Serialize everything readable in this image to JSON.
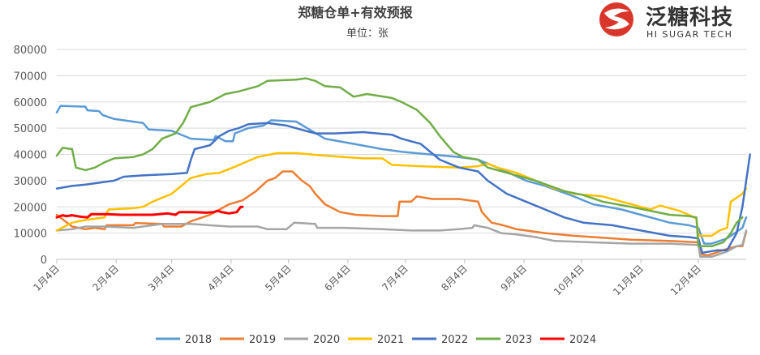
{
  "logo": {
    "name": "泛糖科技",
    "sub": "HI SUGAR TECH",
    "color": "#d9362b"
  },
  "chart_data": {
    "type": "line",
    "title": "郑糖仓单+有效预报",
    "subtitle": "单位：张",
    "xlabel": "",
    "ylabel": "",
    "ylim": [
      0,
      80000
    ],
    "yticks": [
      "0",
      "10000",
      "20000",
      "30000",
      "40000",
      "50000",
      "60000",
      "70000",
      "80000"
    ],
    "xlim": [
      0,
      360
    ],
    "xticks": [
      {
        "label": "1月4日",
        "day": 0
      },
      {
        "label": "2月4日",
        "day": 31
      },
      {
        "label": "3月4日",
        "day": 60
      },
      {
        "label": "4月4日",
        "day": 91
      },
      {
        "label": "5月4日",
        "day": 121
      },
      {
        "label": "6月4日",
        "day": 152
      },
      {
        "label": "7月4日",
        "day": 182
      },
      {
        "label": "8月4日",
        "day": 213
      },
      {
        "label": "9月4日",
        "day": 244
      },
      {
        "label": "10月4日",
        "day": 274
      },
      {
        "label": "11月4日",
        "day": 305
      },
      {
        "label": "12月4日",
        "day": 335
      }
    ],
    "grid": true,
    "legend_position": "bottom",
    "series": [
      {
        "name": "2018",
        "color": "#5b9bd5",
        "points": [
          [
            0,
            56000
          ],
          [
            2,
            58500
          ],
          [
            15,
            58200
          ],
          [
            16,
            56800
          ],
          [
            22,
            56500
          ],
          [
            24,
            55000
          ],
          [
            30,
            53500
          ],
          [
            45,
            52000
          ],
          [
            48,
            49500
          ],
          [
            60,
            49000
          ],
          [
            70,
            46000
          ],
          [
            82,
            45500
          ],
          [
            83,
            47000
          ],
          [
            88,
            45000
          ],
          [
            92,
            45000
          ],
          [
            93,
            48000
          ],
          [
            100,
            50000
          ],
          [
            108,
            51000
          ],
          [
            112,
            53000
          ],
          [
            125,
            52500
          ],
          [
            140,
            46000
          ],
          [
            155,
            44000
          ],
          [
            170,
            42000
          ],
          [
            180,
            41000
          ],
          [
            195,
            40000
          ],
          [
            210,
            39000
          ],
          [
            220,
            38000
          ],
          [
            230,
            35000
          ],
          [
            245,
            30000
          ],
          [
            255,
            28000
          ],
          [
            270,
            24000
          ],
          [
            280,
            21000
          ],
          [
            295,
            19000
          ],
          [
            305,
            17000
          ],
          [
            320,
            14000
          ],
          [
            330,
            13000
          ],
          [
            335,
            12000
          ],
          [
            338,
            6000
          ],
          [
            342,
            6000
          ],
          [
            350,
            8000
          ],
          [
            358,
            12000
          ],
          [
            360,
            16000
          ]
        ]
      },
      {
        "name": "2019",
        "color": "#ed7d31",
        "points": [
          [
            0,
            17000
          ],
          [
            8,
            12500
          ],
          [
            15,
            11500
          ],
          [
            20,
            12000
          ],
          [
            25,
            11500
          ],
          [
            26,
            13000
          ],
          [
            40,
            13000
          ],
          [
            41,
            13800
          ],
          [
            55,
            13500
          ],
          [
            56,
            12500
          ],
          [
            65,
            12500
          ],
          [
            70,
            14500
          ],
          [
            80,
            17000
          ],
          [
            85,
            19000
          ],
          [
            90,
            21000
          ],
          [
            97,
            22500
          ],
          [
            104,
            26000
          ],
          [
            110,
            30000
          ],
          [
            114,
            31000
          ],
          [
            118,
            33500
          ],
          [
            123,
            33500
          ],
          [
            128,
            30000
          ],
          [
            132,
            28000
          ],
          [
            135,
            25000
          ],
          [
            140,
            21000
          ],
          [
            148,
            18000
          ],
          [
            156,
            17000
          ],
          [
            170,
            16500
          ],
          [
            178,
            16500
          ],
          [
            179,
            22000
          ],
          [
            185,
            22000
          ],
          [
            188,
            24000
          ],
          [
            196,
            23000
          ],
          [
            210,
            23000
          ],
          [
            220,
            22000
          ],
          [
            222,
            18000
          ],
          [
            227,
            14000
          ],
          [
            233,
            13000
          ],
          [
            240,
            11500
          ],
          [
            255,
            10000
          ],
          [
            270,
            9000
          ],
          [
            290,
            8000
          ],
          [
            300,
            7500
          ],
          [
            320,
            7000
          ],
          [
            335,
            6500
          ],
          [
            336,
            2000
          ],
          [
            340,
            1500
          ],
          [
            350,
            4000
          ],
          [
            355,
            5000
          ],
          [
            358,
            5000
          ],
          [
            360,
            10500
          ]
        ]
      },
      {
        "name": "2020",
        "color": "#a5a5a5",
        "points": [
          [
            0,
            11000
          ],
          [
            8,
            11500
          ],
          [
            15,
            12500
          ],
          [
            25,
            12500
          ],
          [
            40,
            12000
          ],
          [
            55,
            13500
          ],
          [
            70,
            13500
          ],
          [
            90,
            12500
          ],
          [
            105,
            12500
          ],
          [
            110,
            11500
          ],
          [
            120,
            11500
          ],
          [
            124,
            14000
          ],
          [
            135,
            13500
          ],
          [
            136,
            12000
          ],
          [
            150,
            12000
          ],
          [
            170,
            11500
          ],
          [
            185,
            11000
          ],
          [
            200,
            11000
          ],
          [
            210,
            11500
          ],
          [
            217,
            12000
          ],
          [
            218,
            13000
          ],
          [
            225,
            12000
          ],
          [
            232,
            10000
          ],
          [
            240,
            9500
          ],
          [
            250,
            8500
          ],
          [
            260,
            7000
          ],
          [
            280,
            6500
          ],
          [
            300,
            6000
          ],
          [
            320,
            6000
          ],
          [
            335,
            5500
          ],
          [
            336,
            1000
          ],
          [
            342,
            1000
          ],
          [
            350,
            3000
          ],
          [
            355,
            5000
          ],
          [
            358,
            5500
          ],
          [
            360,
            11000
          ]
        ]
      },
      {
        "name": "2021",
        "color": "#ffc000",
        "points": [
          [
            0,
            11000
          ],
          [
            8,
            14000
          ],
          [
            15,
            15000
          ],
          [
            25,
            16000
          ],
          [
            27,
            19000
          ],
          [
            40,
            19500
          ],
          [
            45,
            20000
          ],
          [
            50,
            22000
          ],
          [
            60,
            25000
          ],
          [
            65,
            28000
          ],
          [
            70,
            31000
          ],
          [
            78,
            32500
          ],
          [
            85,
            33000
          ],
          [
            92,
            35000
          ],
          [
            100,
            37500
          ],
          [
            105,
            39000
          ],
          [
            115,
            40500
          ],
          [
            125,
            40500
          ],
          [
            140,
            39500
          ],
          [
            160,
            38500
          ],
          [
            170,
            38500
          ],
          [
            175,
            36000
          ],
          [
            190,
            35500
          ],
          [
            210,
            35000
          ],
          [
            220,
            35500
          ],
          [
            225,
            36500
          ],
          [
            230,
            35000
          ],
          [
            240,
            33000
          ],
          [
            250,
            30000
          ],
          [
            260,
            27000
          ],
          [
            270,
            25000
          ],
          [
            285,
            24000
          ],
          [
            295,
            22000
          ],
          [
            300,
            21000
          ],
          [
            310,
            19000
          ],
          [
            315,
            20500
          ],
          [
            325,
            18500
          ],
          [
            330,
            17000
          ],
          [
            334,
            15500
          ],
          [
            335,
            9000
          ],
          [
            342,
            9000
          ],
          [
            346,
            11000
          ],
          [
            350,
            12000
          ],
          [
            352,
            22000
          ],
          [
            358,
            25000
          ],
          [
            360,
            27000
          ]
        ]
      },
      {
        "name": "2022",
        "color": "#4472c4",
        "points": [
          [
            0,
            27000
          ],
          [
            8,
            28000
          ],
          [
            15,
            28500
          ],
          [
            20,
            29000
          ],
          [
            30,
            30000
          ],
          [
            35,
            31500
          ],
          [
            45,
            32000
          ],
          [
            60,
            32500
          ],
          [
            68,
            33000
          ],
          [
            70,
            38000
          ],
          [
            72,
            42000
          ],
          [
            80,
            43500
          ],
          [
            85,
            47000
          ],
          [
            90,
            49000
          ],
          [
            95,
            50000
          ],
          [
            100,
            51500
          ],
          [
            110,
            52000
          ],
          [
            120,
            51000
          ],
          [
            130,
            49000
          ],
          [
            135,
            48000
          ],
          [
            145,
            48000
          ],
          [
            160,
            48500
          ],
          [
            175,
            47500
          ],
          [
            180,
            46000
          ],
          [
            190,
            44000
          ],
          [
            200,
            38000
          ],
          [
            210,
            35000
          ],
          [
            220,
            33500
          ],
          [
            225,
            30000
          ],
          [
            235,
            25000
          ],
          [
            245,
            22000
          ],
          [
            255,
            19000
          ],
          [
            265,
            16000
          ],
          [
            275,
            14000
          ],
          [
            290,
            13000
          ],
          [
            305,
            11000
          ],
          [
            320,
            9000
          ],
          [
            330,
            8500
          ],
          [
            335,
            8000
          ],
          [
            337,
            2500
          ],
          [
            345,
            3500
          ],
          [
            350,
            3500
          ],
          [
            355,
            10000
          ],
          [
            358,
            20000
          ],
          [
            360,
            30000
          ],
          [
            362,
            40000
          ]
        ]
      },
      {
        "name": "2023",
        "color": "#70ad47",
        "points": [
          [
            0,
            39500
          ],
          [
            3,
            42500
          ],
          [
            8,
            42000
          ],
          [
            10,
            35000
          ],
          [
            15,
            34000
          ],
          [
            20,
            35000
          ],
          [
            25,
            37000
          ],
          [
            30,
            38500
          ],
          [
            40,
            39000
          ],
          [
            45,
            40000
          ],
          [
            50,
            42000
          ],
          [
            55,
            46000
          ],
          [
            62,
            48000
          ],
          [
            66,
            52000
          ],
          [
            70,
            58000
          ],
          [
            75,
            59000
          ],
          [
            80,
            60000
          ],
          [
            88,
            63000
          ],
          [
            95,
            64000
          ],
          [
            105,
            66000
          ],
          [
            110,
            68000
          ],
          [
            125,
            68500
          ],
          [
            130,
            69000
          ],
          [
            135,
            68000
          ],
          [
            140,
            66000
          ],
          [
            148,
            65500
          ],
          [
            155,
            62000
          ],
          [
            162,
            63000
          ],
          [
            175,
            61500
          ],
          [
            180,
            60000
          ],
          [
            188,
            57000
          ],
          [
            195,
            52000
          ],
          [
            200,
            47000
          ],
          [
            207,
            41000
          ],
          [
            212,
            39000
          ],
          [
            220,
            38000
          ],
          [
            225,
            35000
          ],
          [
            235,
            33000
          ],
          [
            250,
            30000
          ],
          [
            265,
            26000
          ],
          [
            275,
            24500
          ],
          [
            285,
            22000
          ],
          [
            300,
            20000
          ],
          [
            310,
            18500
          ],
          [
            320,
            17000
          ],
          [
            330,
            16500
          ],
          [
            334,
            16000
          ],
          [
            335,
            5000
          ],
          [
            342,
            5000
          ],
          [
            348,
            6500
          ],
          [
            352,
            10000
          ],
          [
            355,
            14000
          ],
          [
            358,
            16000
          ]
        ]
      },
      {
        "name": "2024",
        "color": "#ff0000",
        "points": [
          [
            0,
            16000
          ],
          [
            3,
            16800
          ],
          [
            5,
            16500
          ],
          [
            8,
            16800
          ],
          [
            12,
            16300
          ],
          [
            16,
            16000
          ],
          [
            18,
            17200
          ],
          [
            26,
            17200
          ],
          [
            34,
            17000
          ],
          [
            42,
            17000
          ],
          [
            50,
            17000
          ],
          [
            58,
            17500
          ],
          [
            62,
            17000
          ],
          [
            64,
            18000
          ],
          [
            72,
            18000
          ],
          [
            78,
            17800
          ],
          [
            82,
            18000
          ],
          [
            84,
            18500
          ],
          [
            86,
            18000
          ],
          [
            90,
            17500
          ],
          [
            94,
            18000
          ],
          [
            96,
            20000
          ],
          [
            97,
            20000
          ]
        ]
      }
    ]
  }
}
